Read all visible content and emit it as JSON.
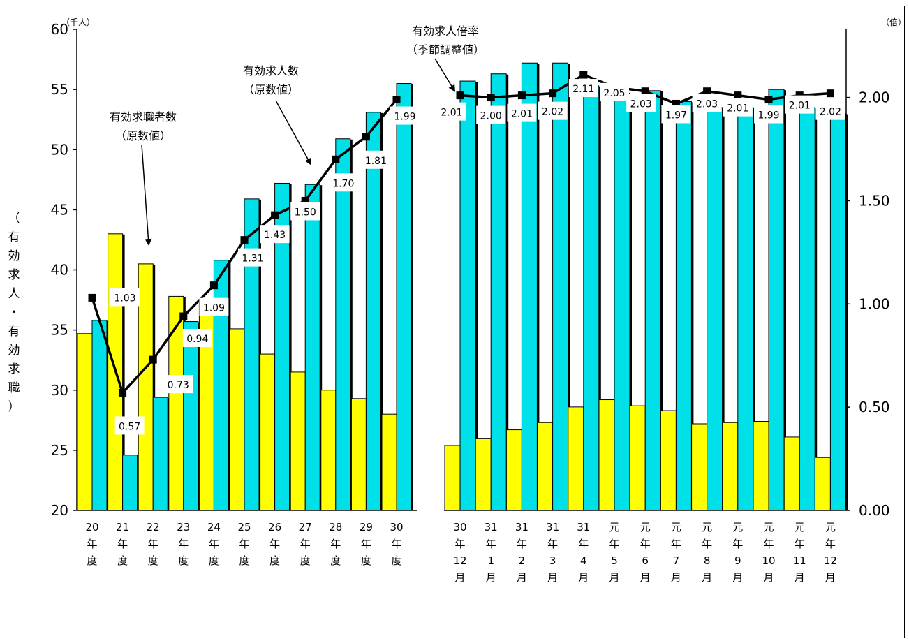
{
  "chart_data": {
    "type": "bar",
    "y_left": {
      "ticks": [
        "60",
        "55",
        "50",
        "45",
        "40",
        "35",
        "30",
        "25",
        "20"
      ],
      "range": [
        20,
        60
      ],
      "unit": "（千人）",
      "label_chars": [
        "（",
        "有",
        "効",
        "求",
        "人",
        "・",
        "有",
        "効",
        "求",
        "職",
        "）"
      ]
    },
    "y_right": {
      "ticks": [
        "2.00",
        "1.50",
        "1.00",
        "0.50",
        "0.00"
      ],
      "range": [
        0,
        2.33
      ],
      "unit": "（倍）"
    },
    "annotations": {
      "job_seekers": [
        "有効求職者数",
        "（原数値）"
      ],
      "job_offers": [
        "有効求人数",
        "（原数値）"
      ],
      "ratio": [
        "有効求人倍率",
        "（季節調整値）"
      ]
    },
    "annual": {
      "categories": [
        [
          "20",
          "年",
          "度"
        ],
        [
          "21",
          "年",
          "度"
        ],
        [
          "22",
          "年",
          "度"
        ],
        [
          "23",
          "年",
          "度"
        ],
        [
          "24",
          "年",
          "度"
        ],
        [
          "25",
          "年",
          "度"
        ],
        [
          "26",
          "年",
          "度"
        ],
        [
          "27",
          "年",
          "度"
        ],
        [
          "28",
          "年",
          "度"
        ],
        [
          "29",
          "年",
          "度"
        ],
        [
          "30",
          "年",
          "度"
        ]
      ],
      "job_seekers": [
        34.7,
        43.0,
        40.5,
        37.8,
        37.5,
        35.1,
        33.0,
        31.5,
        30.0,
        29.3,
        28.0
      ],
      "job_offers": [
        35.8,
        24.6,
        29.4,
        35.7,
        40.8,
        45.9,
        47.2,
        47.1,
        50.9,
        53.1,
        55.5
      ],
      "ratio": [
        1.03,
        0.57,
        0.73,
        0.94,
        1.09,
        1.31,
        1.43,
        1.5,
        1.7,
        1.81,
        1.99
      ],
      "ratio_labels": [
        "1.03",
        "0.57",
        "0.73",
        "0.94",
        "1.09",
        "1.31",
        "1.43",
        "1.50",
        "1.70",
        "1.81",
        "1.99"
      ]
    },
    "monthly": {
      "categories": [
        [
          "30",
          "年",
          "12",
          "月"
        ],
        [
          "31",
          "年",
          "1",
          "月"
        ],
        [
          "31",
          "年",
          "2",
          "月"
        ],
        [
          "31",
          "年",
          "3",
          "月"
        ],
        [
          "31",
          "年",
          "4",
          "月"
        ],
        [
          "元",
          "年",
          "5",
          "月"
        ],
        [
          "元",
          "年",
          "6",
          "月"
        ],
        [
          "元",
          "年",
          "7",
          "月"
        ],
        [
          "元",
          "年",
          "8",
          "月"
        ],
        [
          "元",
          "年",
          "9",
          "月"
        ],
        [
          "元",
          "年",
          "10",
          "月"
        ],
        [
          "元",
          "年",
          "11",
          "月"
        ],
        [
          "元",
          "年",
          "12",
          "月"
        ]
      ],
      "job_seekers": [
        25.4,
        26.0,
        26.7,
        27.3,
        28.6,
        29.2,
        28.7,
        28.3,
        27.2,
        27.3,
        27.4,
        26.1,
        24.4
      ],
      "job_offers": [
        55.7,
        56.3,
        57.2,
        57.2,
        55.3,
        54.7,
        54.9,
        54.0,
        53.5,
        53.5,
        55.0,
        53.5,
        53.0
      ],
      "ratio": [
        2.01,
        2.0,
        2.01,
        2.02,
        2.11,
        2.05,
        2.03,
        1.97,
        2.03,
        2.01,
        1.99,
        2.01,
        2.02
      ],
      "ratio_labels": [
        "2.01",
        "2.00",
        "2.01",
        "2.02",
        "2.11",
        "2.05",
        "2.03",
        "1.97",
        "2.03",
        "2.01",
        "1.99",
        "2.01",
        "2.02"
      ]
    },
    "colors": {
      "job_seekers": "#ffff00",
      "job_offers": "#00e0e8",
      "line": "#000000",
      "shadow": "#000000"
    }
  }
}
